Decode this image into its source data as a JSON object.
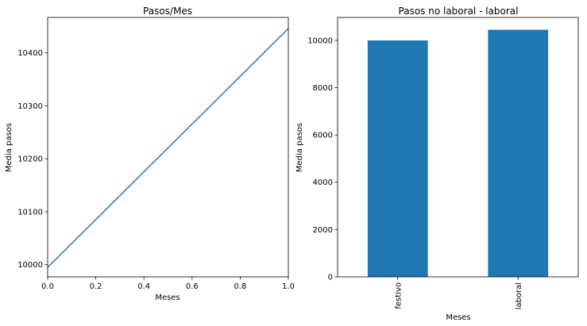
{
  "chart_data": [
    {
      "type": "line",
      "title": "Pasos/Mes",
      "xlabel": "Meses",
      "ylabel": "Media pasos",
      "x": [
        0.0,
        1.0
      ],
      "series": [
        {
          "values": [
            9995,
            10446
          ],
          "color": "#1f77b4"
        }
      ],
      "xlim": [
        0.0,
        1.0
      ],
      "ylim": [
        9977,
        10467
      ],
      "xticks": [
        "0.0",
        "0.2",
        "0.4",
        "0.6",
        "0.8",
        "1.0"
      ],
      "xtick_values": [
        0.0,
        0.2,
        0.4,
        0.6,
        0.8,
        1.0
      ],
      "yticks": [
        "10000",
        "10100",
        "10200",
        "10300",
        "10400"
      ],
      "ytick_values": [
        10000,
        10100,
        10200,
        10300,
        10400
      ],
      "grid": false
    },
    {
      "type": "bar",
      "title": "Pasos no laboral - laboral",
      "xlabel": "Meses",
      "ylabel": "Media pasos",
      "categories": [
        "festivo",
        "laboral"
      ],
      "values": [
        9995,
        10446
      ],
      "color": "#1f77b4",
      "ylim": [
        0,
        10968
      ],
      "yticks": [
        "0",
        "2000",
        "4000",
        "6000",
        "8000",
        "10000"
      ],
      "ytick_values": [
        0,
        2000,
        4000,
        6000,
        8000,
        10000
      ],
      "grid": false
    }
  ]
}
